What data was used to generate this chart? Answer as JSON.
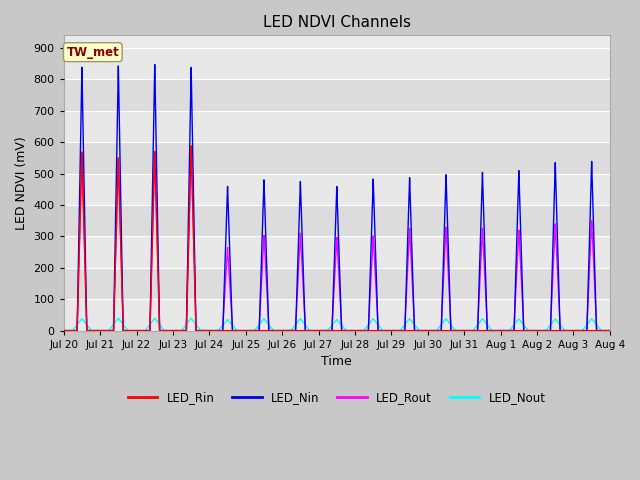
{
  "title": "LED NDVI Channels",
  "xlabel": "Time",
  "ylabel": "LED NDVI (mV)",
  "ylim": [
    0,
    940
  ],
  "yticks": [
    0,
    100,
    200,
    300,
    400,
    500,
    600,
    700,
    800,
    900
  ],
  "annotation_label": "TW_met",
  "annotation_color": "#8B0000",
  "annotation_bg": "#FFFFCC",
  "fig_bg": "#C8C8C8",
  "plot_bg": "#EBEBEB",
  "line_colors": {
    "LED_Rin": "#FF0000",
    "LED_Nin": "#0000EE",
    "LED_Rout": "#FF00FF",
    "LED_Nout": "#00FFFF"
  },
  "x_tick_labels": [
    "Jul 20",
    "Jul 21",
    "Jul 22",
    "Jul 23",
    "Jul 24",
    "Jul 25",
    "Jul 26",
    "Jul 27",
    "Jul 28",
    "Jul 29",
    "Jul 30",
    "Jul 31",
    "Aug 1",
    "Aug 2",
    "Aug 3",
    "Aug 4"
  ],
  "n_days": 15,
  "peaks_Nin": [
    840,
    843,
    848,
    840,
    460,
    480,
    475,
    460,
    483,
    487,
    497,
    505,
    510,
    535,
    540
  ],
  "peaks_Rin": [
    570,
    550,
    570,
    590,
    0,
    0,
    0,
    0,
    0,
    0,
    0,
    0,
    0,
    0,
    0
  ],
  "peaks_Rout": [
    565,
    545,
    570,
    585,
    265,
    303,
    310,
    298,
    302,
    325,
    330,
    325,
    320,
    340,
    350
  ],
  "peaks_Nout": [
    38,
    40,
    40,
    40,
    35,
    38,
    38,
    35,
    38,
    38,
    38,
    38,
    37,
    37,
    38
  ],
  "grid_colors": [
    "#DCDCDC",
    "#F0F0F0"
  ],
  "figsize": [
    6.4,
    4.8
  ],
  "dpi": 100
}
